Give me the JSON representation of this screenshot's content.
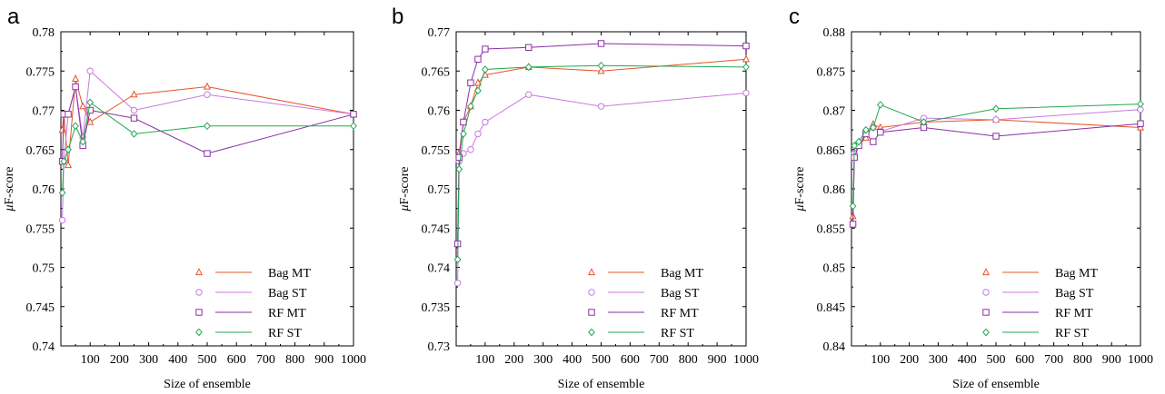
{
  "colors": {
    "Bag MT": "#e8542a",
    "Bag ST": "#c77ae0",
    "RF MT": "#8b2fa5",
    "RF ST": "#22a850"
  },
  "chart_data": [
    {
      "panel": "a",
      "type": "line",
      "xlabel": "Size of ensemble",
      "ylabel": "μF-score",
      "ylabel_prefix": "μ",
      "ylabel_rest": "F-score",
      "xlim": [
        0,
        1000
      ],
      "ylim": [
        0.74,
        0.78
      ],
      "xticks": [
        100,
        200,
        300,
        400,
        500,
        600,
        700,
        800,
        900,
        1000
      ],
      "yticks": [
        0.74,
        0.745,
        0.75,
        0.755,
        0.76,
        0.765,
        0.77,
        0.775,
        0.78
      ],
      "ytick_labels": [
        "0.74",
        "0.745",
        "0.75",
        "0.755",
        "0.76",
        "0.765",
        "0.77",
        "0.775",
        "0.78"
      ],
      "legend_position": "bottom-right",
      "series": [
        {
          "name": "Bag MT",
          "marker": "triangle",
          "x": [
            5,
            10,
            25,
            50,
            75,
            100,
            250,
            500,
            1000
          ],
          "y": [
            0.7675,
            0.7695,
            0.763,
            0.774,
            0.7705,
            0.7685,
            0.772,
            0.773,
            0.7695
          ]
        },
        {
          "name": "Bag ST",
          "marker": "circle",
          "x": [
            5,
            10,
            25,
            50,
            75,
            100,
            250,
            500,
            1000
          ],
          "y": [
            0.756,
            0.7635,
            0.7695,
            0.773,
            0.7665,
            0.775,
            0.77,
            0.772,
            0.7695
          ]
        },
        {
          "name": "RF MT",
          "marker": "square",
          "x": [
            5,
            10,
            25,
            50,
            75,
            100,
            250,
            500,
            1000
          ],
          "y": [
            0.7635,
            0.7695,
            0.7695,
            0.773,
            0.7655,
            0.77,
            0.769,
            0.7645,
            0.7695
          ]
        },
        {
          "name": "RF ST",
          "marker": "diamond",
          "x": [
            5,
            10,
            25,
            50,
            75,
            100,
            250,
            500,
            1000
          ],
          "y": [
            0.7595,
            0.7635,
            0.765,
            0.768,
            0.766,
            0.771,
            0.767,
            0.768,
            0.768
          ]
        }
      ]
    },
    {
      "panel": "b",
      "type": "line",
      "xlabel": "Size of ensemble",
      "ylabel": "μF-score",
      "ylabel_prefix": "μ",
      "ylabel_rest": "F-score",
      "xlim": [
        0,
        1000
      ],
      "ylim": [
        0.73,
        0.77
      ],
      "xticks": [
        100,
        200,
        300,
        400,
        500,
        600,
        700,
        800,
        900,
        1000
      ],
      "yticks": [
        0.73,
        0.735,
        0.74,
        0.745,
        0.75,
        0.755,
        0.76,
        0.765,
        0.77
      ],
      "ytick_labels": [
        "0.73",
        "0.735",
        "0.74",
        "0.745",
        "0.75",
        "0.755",
        "0.76",
        "0.765",
        "0.77"
      ],
      "legend_position": "bottom-right",
      "series": [
        {
          "name": "Bag MT",
          "marker": "triangle",
          "x": [
            5,
            10,
            25,
            50,
            75,
            100,
            250,
            500,
            1000
          ],
          "y": [
            0.743,
            0.7545,
            0.7585,
            0.7605,
            0.7635,
            0.7645,
            0.7655,
            0.765,
            0.7665
          ]
        },
        {
          "name": "Bag ST",
          "marker": "circle",
          "x": [
            5,
            10,
            25,
            50,
            75,
            100,
            250,
            500,
            1000
          ],
          "y": [
            0.738,
            0.7535,
            0.7545,
            0.755,
            0.757,
            0.7585,
            0.762,
            0.7605,
            0.7622
          ]
        },
        {
          "name": "RF MT",
          "marker": "square",
          "x": [
            5,
            10,
            25,
            50,
            75,
            100,
            250,
            500,
            1000
          ],
          "y": [
            0.743,
            0.754,
            0.7585,
            0.7635,
            0.7665,
            0.7678,
            0.768,
            0.7685,
            0.7682
          ]
        },
        {
          "name": "RF ST",
          "marker": "diamond",
          "x": [
            5,
            10,
            25,
            50,
            75,
            100,
            250,
            500,
            1000
          ],
          "y": [
            0.741,
            0.7525,
            0.757,
            0.7605,
            0.7625,
            0.7652,
            0.7655,
            0.7657,
            0.7655
          ]
        }
      ]
    },
    {
      "panel": "c",
      "type": "line",
      "xlabel": "Size of ensemble",
      "ylabel": "μF-score",
      "ylabel_prefix": "μ",
      "ylabel_rest": "F-score",
      "xlim": [
        0,
        1000
      ],
      "ylim": [
        0.84,
        0.88
      ],
      "xticks": [
        100,
        200,
        300,
        400,
        500,
        600,
        700,
        800,
        900,
        1000
      ],
      "yticks": [
        0.84,
        0.845,
        0.85,
        0.855,
        0.86,
        0.865,
        0.87,
        0.875,
        0.88
      ],
      "ytick_labels": [
        "0.84",
        "0.845",
        "0.85",
        "0.855",
        "0.86",
        "0.865",
        "0.87",
        "0.875",
        "0.88"
      ],
      "legend_position": "bottom-right",
      "series": [
        {
          "name": "Bag MT",
          "marker": "triangle",
          "x": [
            5,
            10,
            25,
            50,
            75,
            100,
            250,
            500,
            1000
          ],
          "y": [
            0.8565,
            0.8645,
            0.8655,
            0.8665,
            0.8682,
            0.8678,
            0.8685,
            0.8688,
            0.8678
          ]
        },
        {
          "name": "Bag ST",
          "marker": "circle",
          "x": [
            5,
            10,
            25,
            50,
            75,
            100,
            250,
            500,
            1000
          ],
          "y": [
            0.8555,
            0.8645,
            0.8655,
            0.8672,
            0.8678,
            0.8673,
            0.869,
            0.8688,
            0.8701
          ]
        },
        {
          "name": "RF MT",
          "marker": "square",
          "x": [
            5,
            10,
            25,
            50,
            75,
            100,
            250,
            500,
            1000
          ],
          "y": [
            0.8555,
            0.864,
            0.8655,
            0.867,
            0.866,
            0.8672,
            0.8678,
            0.8667,
            0.8683
          ]
        },
        {
          "name": "RF ST",
          "marker": "diamond",
          "x": [
            5,
            10,
            25,
            50,
            75,
            100,
            250,
            500,
            1000
          ],
          "y": [
            0.8578,
            0.8655,
            0.866,
            0.8675,
            0.8678,
            0.8707,
            0.8685,
            0.8702,
            0.8708
          ]
        }
      ]
    }
  ]
}
